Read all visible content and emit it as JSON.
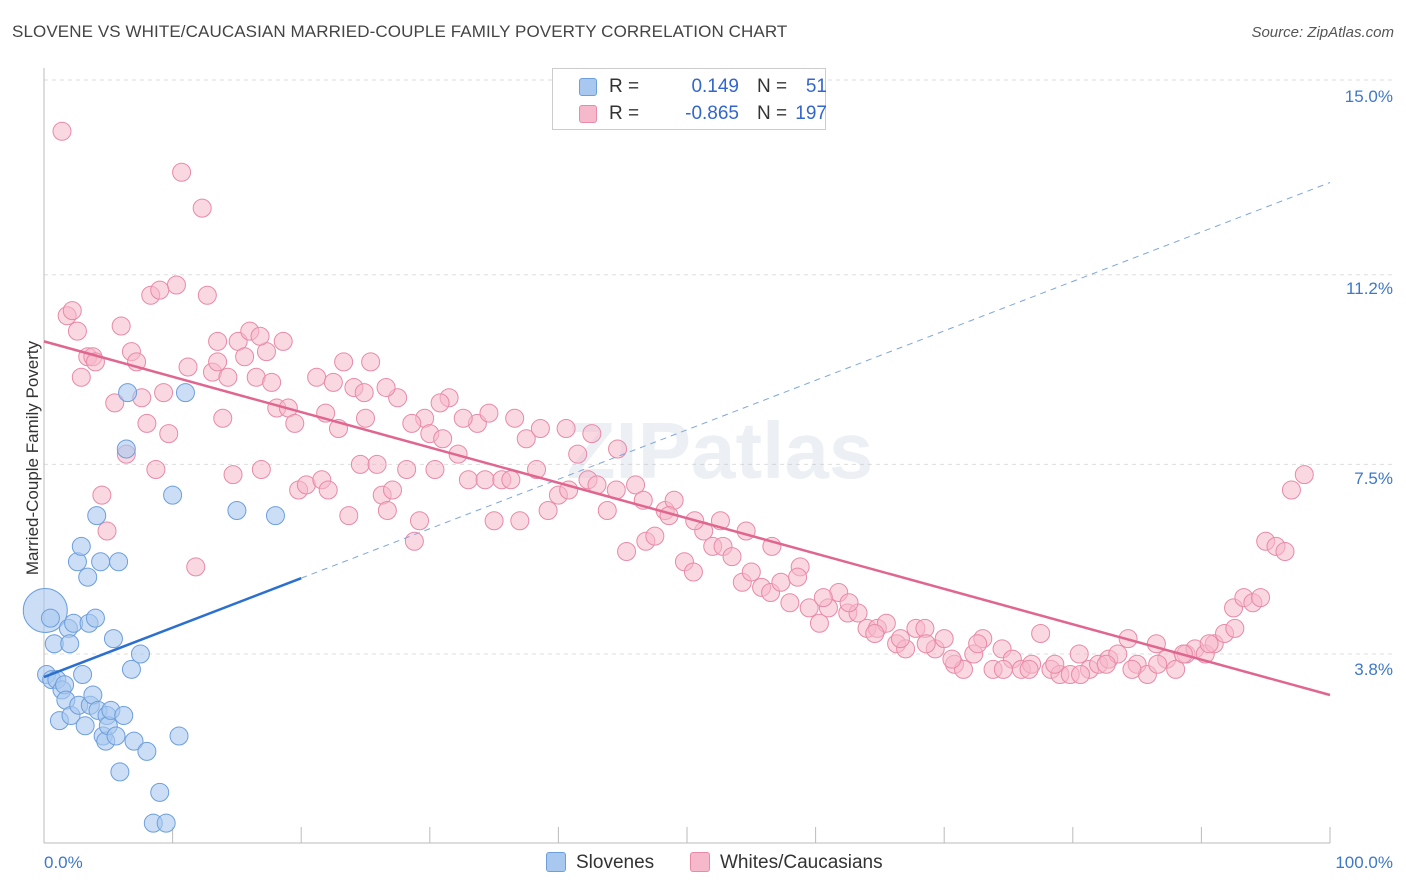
{
  "title": "SLOVENE VS WHITE/CAUCASIAN MARRIED-COUPLE FAMILY POVERTY CORRELATION CHART",
  "source": "Source: ZipAtlas.com",
  "watermark": "ZIPatlas",
  "colors": {
    "slovenes_fill": "#a9c8ef",
    "slovenes_stroke": "#6d9fdd",
    "slovenes_line": "#2b6fcf",
    "whites_fill": "#f6b8cb",
    "whites_stroke": "#e88aa8",
    "whites_line": "#e0668f",
    "tick_label": "#3e78c8",
    "grid": "#dddddd"
  },
  "legend": {
    "rows": [
      {
        "r_label": "R =",
        "r_value": "0.149",
        "n_label": "N =",
        "n_value": "51"
      },
      {
        "r_label": "R =",
        "r_value": "-0.865",
        "n_label": "N =",
        "n_value": "197"
      }
    ]
  },
  "chart_data": {
    "type": "scatter",
    "title": "SLOVENE VS WHITE/CAUCASIAN MARRIED-COUPLE FAMILY POVERTY CORRELATION CHART",
    "xlabel": "",
    "ylabel": "Married-Couple Family Poverty",
    "x_ticks": [
      "0.0%",
      "100.0%"
    ],
    "y_ticks": [
      "3.8%",
      "7.5%",
      "11.2%",
      "15.0%"
    ],
    "xlim": [
      0,
      100
    ],
    "ylim": [
      0,
      15.6
    ],
    "grid": true,
    "legend_position": "bottom",
    "series": [
      {
        "name": "Slovenes",
        "r": 0.149,
        "n": 51,
        "trend": {
          "x0": 0,
          "y0": 3.35,
          "x1": 100,
          "y1": 13.0,
          "solid_until_x": 20
        },
        "points": [
          [
            0.1,
            4.65
          ],
          [
            0.2,
            3.4
          ],
          [
            0.5,
            4.5
          ],
          [
            0.6,
            3.3
          ],
          [
            0.8,
            4.0
          ],
          [
            1.0,
            3.3
          ],
          [
            1.2,
            2.5
          ],
          [
            1.4,
            3.1
          ],
          [
            1.6,
            3.2
          ],
          [
            1.7,
            2.9
          ],
          [
            1.9,
            4.3
          ],
          [
            2.0,
            4.0
          ],
          [
            2.1,
            2.6
          ],
          [
            2.3,
            4.4
          ],
          [
            2.6,
            5.6
          ],
          [
            2.7,
            2.8
          ],
          [
            2.9,
            5.9
          ],
          [
            3.0,
            3.4
          ],
          [
            3.2,
            2.4
          ],
          [
            3.4,
            5.3
          ],
          [
            3.5,
            4.4
          ],
          [
            3.6,
            2.8
          ],
          [
            3.8,
            3.0
          ],
          [
            4.0,
            4.5
          ],
          [
            4.1,
            6.5
          ],
          [
            4.2,
            2.7
          ],
          [
            4.4,
            5.6
          ],
          [
            4.6,
            2.2
          ],
          [
            4.8,
            2.1
          ],
          [
            4.9,
            2.6
          ],
          [
            5.0,
            2.4
          ],
          [
            5.2,
            2.7
          ],
          [
            5.4,
            4.1
          ],
          [
            5.6,
            2.2
          ],
          [
            5.8,
            5.6
          ],
          [
            5.9,
            1.5
          ],
          [
            6.2,
            2.6
          ],
          [
            6.4,
            7.8
          ],
          [
            6.5,
            8.9
          ],
          [
            6.8,
            3.5
          ],
          [
            7.0,
            2.1
          ],
          [
            7.5,
            3.8
          ],
          [
            8.0,
            1.9
          ],
          [
            8.5,
            0.5
          ],
          [
            9.0,
            1.1
          ],
          [
            9.5,
            0.5
          ],
          [
            10.0,
            6.9
          ],
          [
            10.5,
            2.2
          ],
          [
            11.0,
            8.9
          ],
          [
            15.0,
            6.6
          ],
          [
            18.0,
            6.5
          ]
        ]
      },
      {
        "name": "Whites/Caucasians",
        "r": -0.865,
        "n": 197,
        "trend": {
          "x0": 0,
          "y0": 9.9,
          "x1": 100,
          "y1": 3.0
        },
        "points": [
          [
            1.4,
            14.0
          ],
          [
            1.8,
            10.4
          ],
          [
            2.2,
            10.5
          ],
          [
            2.6,
            10.1
          ],
          [
            3.4,
            9.6
          ],
          [
            3.8,
            9.6
          ],
          [
            4.5,
            6.9
          ],
          [
            4.9,
            6.2
          ],
          [
            5.5,
            8.7
          ],
          [
            6.4,
            7.7
          ],
          [
            6.8,
            9.7
          ],
          [
            7.2,
            9.5
          ],
          [
            7.6,
            8.8
          ],
          [
            8.0,
            8.3
          ],
          [
            8.3,
            10.8
          ],
          [
            8.7,
            7.4
          ],
          [
            9.3,
            8.9
          ],
          [
            9.7,
            8.1
          ],
          [
            10.3,
            11.0
          ],
          [
            10.7,
            13.2
          ],
          [
            11.2,
            9.4
          ],
          [
            11.8,
            5.5
          ],
          [
            12.3,
            12.5
          ],
          [
            12.7,
            10.8
          ],
          [
            13.1,
            9.3
          ],
          [
            13.5,
            9.5
          ],
          [
            13.9,
            8.4
          ],
          [
            14.3,
            9.2
          ],
          [
            14.7,
            7.3
          ],
          [
            15.1,
            9.9
          ],
          [
            15.6,
            9.6
          ],
          [
            16.0,
            10.1
          ],
          [
            16.5,
            9.2
          ],
          [
            16.9,
            7.4
          ],
          [
            17.3,
            9.7
          ],
          [
            17.7,
            9.1
          ],
          [
            18.1,
            8.6
          ],
          [
            18.6,
            9.9
          ],
          [
            19.0,
            8.6
          ],
          [
            19.8,
            7.0
          ],
          [
            20.4,
            7.1
          ],
          [
            21.2,
            9.2
          ],
          [
            21.6,
            7.2
          ],
          [
            22.1,
            7.0
          ],
          [
            22.5,
            9.1
          ],
          [
            22.9,
            8.2
          ],
          [
            23.3,
            9.5
          ],
          [
            23.7,
            6.5
          ],
          [
            24.1,
            9.0
          ],
          [
            24.6,
            7.5
          ],
          [
            25.0,
            8.4
          ],
          [
            25.4,
            9.5
          ],
          [
            25.9,
            7.5
          ],
          [
            26.3,
            6.9
          ],
          [
            26.7,
            6.6
          ],
          [
            27.1,
            7.0
          ],
          [
            27.5,
            8.8
          ],
          [
            28.2,
            7.4
          ],
          [
            28.8,
            6.0
          ],
          [
            29.2,
            6.4
          ],
          [
            29.6,
            8.4
          ],
          [
            30.0,
            8.1
          ],
          [
            30.4,
            7.4
          ],
          [
            31.0,
            8.0
          ],
          [
            31.5,
            8.8
          ],
          [
            32.2,
            7.7
          ],
          [
            33.0,
            7.2
          ],
          [
            33.7,
            8.3
          ],
          [
            34.3,
            7.2
          ],
          [
            35.0,
            6.4
          ],
          [
            35.6,
            7.2
          ],
          [
            36.3,
            7.2
          ],
          [
            37.0,
            6.4
          ],
          [
            37.5,
            8.0
          ],
          [
            38.3,
            7.4
          ],
          [
            39.2,
            6.6
          ],
          [
            40.0,
            6.9
          ],
          [
            40.8,
            7.0
          ],
          [
            41.5,
            7.7
          ],
          [
            42.3,
            7.2
          ],
          [
            43.0,
            7.1
          ],
          [
            43.8,
            6.6
          ],
          [
            44.5,
            7.0
          ],
          [
            45.3,
            5.8
          ],
          [
            46.0,
            7.1
          ],
          [
            46.8,
            6.0
          ],
          [
            47.5,
            6.1
          ],
          [
            48.3,
            6.6
          ],
          [
            49.0,
            6.8
          ],
          [
            49.8,
            5.6
          ],
          [
            50.5,
            5.4
          ],
          [
            51.3,
            6.2
          ],
          [
            52.0,
            5.9
          ],
          [
            52.8,
            5.9
          ],
          [
            53.5,
            5.7
          ],
          [
            54.3,
            5.2
          ],
          [
            55.0,
            5.4
          ],
          [
            55.8,
            5.1
          ],
          [
            56.5,
            5.0
          ],
          [
            57.3,
            5.2
          ],
          [
            58.0,
            4.8
          ],
          [
            58.8,
            5.5
          ],
          [
            59.5,
            4.7
          ],
          [
            60.3,
            4.4
          ],
          [
            61.0,
            4.7
          ],
          [
            61.8,
            5.0
          ],
          [
            62.5,
            4.6
          ],
          [
            63.3,
            4.6
          ],
          [
            64.0,
            4.3
          ],
          [
            64.8,
            4.3
          ],
          [
            65.5,
            4.4
          ],
          [
            66.3,
            4.0
          ],
          [
            67.0,
            3.9
          ],
          [
            67.8,
            4.3
          ],
          [
            68.5,
            4.3
          ],
          [
            69.3,
            3.9
          ],
          [
            70.0,
            4.1
          ],
          [
            70.8,
            3.6
          ],
          [
            71.5,
            3.5
          ],
          [
            72.3,
            3.8
          ],
          [
            73.0,
            4.1
          ],
          [
            73.8,
            3.5
          ],
          [
            74.5,
            3.9
          ],
          [
            75.3,
            3.7
          ],
          [
            76.0,
            3.5
          ],
          [
            76.8,
            3.6
          ],
          [
            77.5,
            4.2
          ],
          [
            78.3,
            3.5
          ],
          [
            79.0,
            3.4
          ],
          [
            79.8,
            3.4
          ],
          [
            80.5,
            3.8
          ],
          [
            81.3,
            3.5
          ],
          [
            82.0,
            3.6
          ],
          [
            82.8,
            3.7
          ],
          [
            83.5,
            3.8
          ],
          [
            84.3,
            4.1
          ],
          [
            85.0,
            3.6
          ],
          [
            85.8,
            3.4
          ],
          [
            86.5,
            4.0
          ],
          [
            87.3,
            3.7
          ],
          [
            88.0,
            3.5
          ],
          [
            88.8,
            3.8
          ],
          [
            89.5,
            3.9
          ],
          [
            90.3,
            3.8
          ],
          [
            91.0,
            4.0
          ],
          [
            91.8,
            4.2
          ],
          [
            92.5,
            4.7
          ],
          [
            93.3,
            4.9
          ],
          [
            94.0,
            4.8
          ],
          [
            95.0,
            6.0
          ],
          [
            95.8,
            5.9
          ],
          [
            96.5,
            5.8
          ],
          [
            98.0,
            7.3
          ],
          [
            2.9,
            9.2
          ],
          [
            4.0,
            9.5
          ],
          [
            6.0,
            10.2
          ],
          [
            9.0,
            10.9
          ],
          [
            13.5,
            9.9
          ],
          [
            16.8,
            10.0
          ],
          [
            19.5,
            8.3
          ],
          [
            21.9,
            8.5
          ],
          [
            24.9,
            8.9
          ],
          [
            26.6,
            9.0
          ],
          [
            28.6,
            8.3
          ],
          [
            30.8,
            8.7
          ],
          [
            32.6,
            8.4
          ],
          [
            34.6,
            8.5
          ],
          [
            36.6,
            8.4
          ],
          [
            38.6,
            8.2
          ],
          [
            40.6,
            8.2
          ],
          [
            42.6,
            8.1
          ],
          [
            44.6,
            7.8
          ],
          [
            46.6,
            6.8
          ],
          [
            48.6,
            6.5
          ],
          [
            50.6,
            6.4
          ],
          [
            52.6,
            6.4
          ],
          [
            54.6,
            6.2
          ],
          [
            56.6,
            5.9
          ],
          [
            58.6,
            5.3
          ],
          [
            60.6,
            4.9
          ],
          [
            62.6,
            4.8
          ],
          [
            64.6,
            4.2
          ],
          [
            66.6,
            4.1
          ],
          [
            68.6,
            4.0
          ],
          [
            70.6,
            3.7
          ],
          [
            72.6,
            4.0
          ],
          [
            74.6,
            3.5
          ],
          [
            76.6,
            3.5
          ],
          [
            78.6,
            3.6
          ],
          [
            80.6,
            3.4
          ],
          [
            82.6,
            3.6
          ],
          [
            84.6,
            3.5
          ],
          [
            86.6,
            3.6
          ],
          [
            88.6,
            3.8
          ],
          [
            90.6,
            4.0
          ],
          [
            92.6,
            4.3
          ],
          [
            94.6,
            4.9
          ],
          [
            97.0,
            7.0
          ]
        ]
      }
    ]
  }
}
